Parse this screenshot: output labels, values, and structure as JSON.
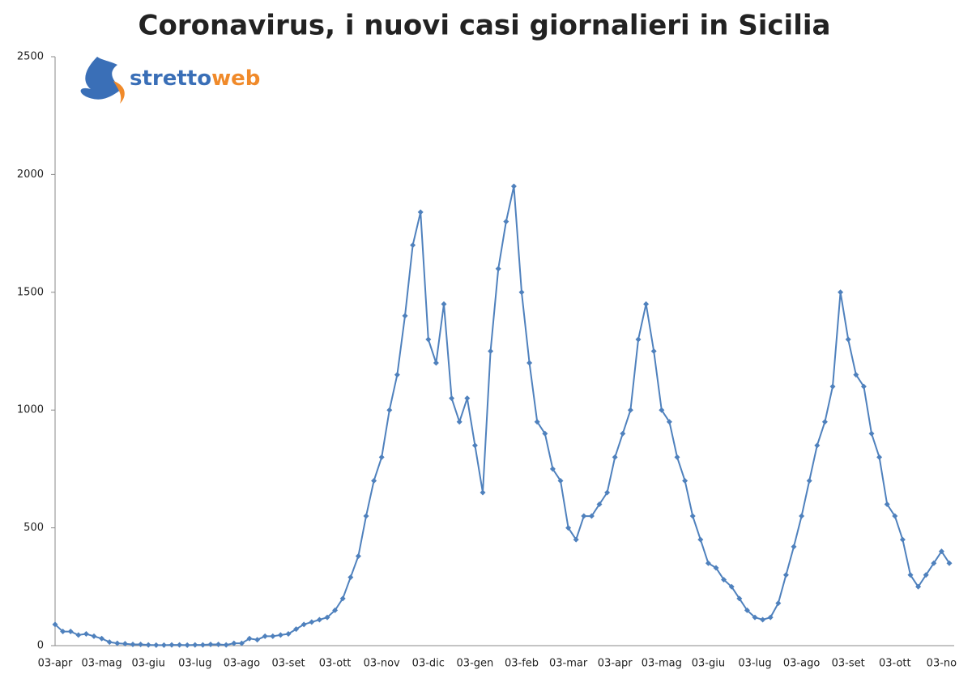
{
  "chart_data": {
    "type": "line",
    "title": "Coronavirus, i nuovi casi giornalieri in Sicilia",
    "logo": {
      "part1": "stretto",
      "part2": "web"
    },
    "categories": [
      "03-apr",
      null,
      null,
      null,
      null,
      null,
      "03-mag",
      null,
      null,
      null,
      null,
      null,
      "03-giu",
      null,
      null,
      null,
      null,
      null,
      "03-lug",
      null,
      null,
      null,
      null,
      null,
      "03-ago",
      null,
      null,
      null,
      null,
      null,
      "03-set",
      null,
      null,
      null,
      null,
      null,
      "03-ott",
      null,
      null,
      null,
      null,
      null,
      "03-nov",
      null,
      null,
      null,
      null,
      null,
      "03-dic",
      null,
      null,
      null,
      null,
      null,
      "03-gen",
      null,
      null,
      null,
      null,
      null,
      "03-feb",
      null,
      null,
      null,
      null,
      null,
      "03-mar",
      null,
      null,
      null,
      null,
      null,
      "03-apr",
      null,
      null,
      null,
      null,
      null,
      "03-mag",
      null,
      null,
      null,
      null,
      null,
      "03-giu",
      null,
      null,
      null,
      null,
      null,
      "03-lug",
      null,
      null,
      null,
      null,
      null,
      "03-ago",
      null,
      null,
      null,
      null,
      null,
      "03-set",
      null,
      null,
      null,
      null,
      null,
      "03-ott",
      null,
      null,
      null,
      null,
      null,
      "03-no",
      null
    ],
    "series": [
      {
        "color": "#4f81bd",
        "values": [
          90,
          60,
          60,
          45,
          50,
          40,
          30,
          15,
          10,
          8,
          5,
          5,
          3,
          2,
          2,
          3,
          3,
          2,
          3,
          3,
          5,
          5,
          3,
          10,
          10,
          30,
          25,
          40,
          40,
          45,
          50,
          70,
          90,
          100,
          110,
          120,
          150,
          200,
          290,
          380,
          550,
          700,
          800,
          1000,
          1150,
          1400,
          1700,
          1840,
          1300,
          1200,
          1450,
          1050,
          950,
          1050,
          850,
          650,
          1250,
          1600,
          1800,
          1950,
          1500,
          1200,
          950,
          900,
          750,
          700,
          500,
          450,
          550,
          550,
          600,
          650,
          800,
          900,
          1000,
          1300,
          1450,
          1250,
          1000,
          950,
          800,
          700,
          550,
          450,
          350,
          330,
          280,
          250,
          200,
          150,
          120,
          110,
          120,
          180,
          300,
          420,
          550,
          700,
          850,
          950,
          1100,
          1500,
          1300,
          1150,
          1100,
          900,
          800,
          600,
          550,
          450,
          300,
          250,
          300,
          350,
          400,
          350
        ]
      }
    ],
    "ylim": [
      0,
      2500
    ],
    "yticks": [
      0,
      500,
      1000,
      1500,
      2000,
      2500
    ]
  }
}
